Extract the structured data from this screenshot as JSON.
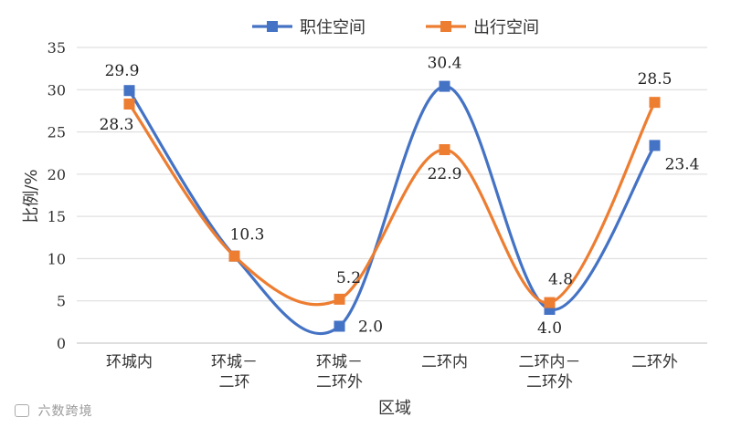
{
  "chart_data": {
    "type": "line",
    "categories": [
      [
        "环城内"
      ],
      [
        "环城－",
        "二环"
      ],
      [
        "环城－",
        "二环外"
      ],
      [
        "二环内"
      ],
      [
        "二环内－",
        "二环外"
      ],
      [
        "二环外"
      ]
    ],
    "series": [
      {
        "name": "职住空间",
        "values": [
          29.9,
          10.3,
          2.0,
          30.4,
          4.0,
          23.4
        ],
        "color": "#4472C4",
        "labels": [
          "29.9",
          "",
          "2.0",
          "30.4",
          "4.0",
          "23.4"
        ]
      },
      {
        "name": "出行空间",
        "values": [
          28.3,
          10.3,
          5.2,
          22.9,
          4.8,
          28.5
        ],
        "color": "#ED7D31",
        "labels": [
          "28.3",
          "10.3",
          "5.2",
          "22.9",
          "4.8",
          "28.5"
        ]
      }
    ],
    "xlabel": "区域",
    "ylabel": "比例/%",
    "ylim": [
      0,
      35
    ],
    "yticks": [
      0,
      5,
      10,
      15,
      20,
      25,
      30,
      35
    ],
    "grid": true,
    "legend_position": "top",
    "smooth": true
  },
  "watermark": "六数跨境"
}
